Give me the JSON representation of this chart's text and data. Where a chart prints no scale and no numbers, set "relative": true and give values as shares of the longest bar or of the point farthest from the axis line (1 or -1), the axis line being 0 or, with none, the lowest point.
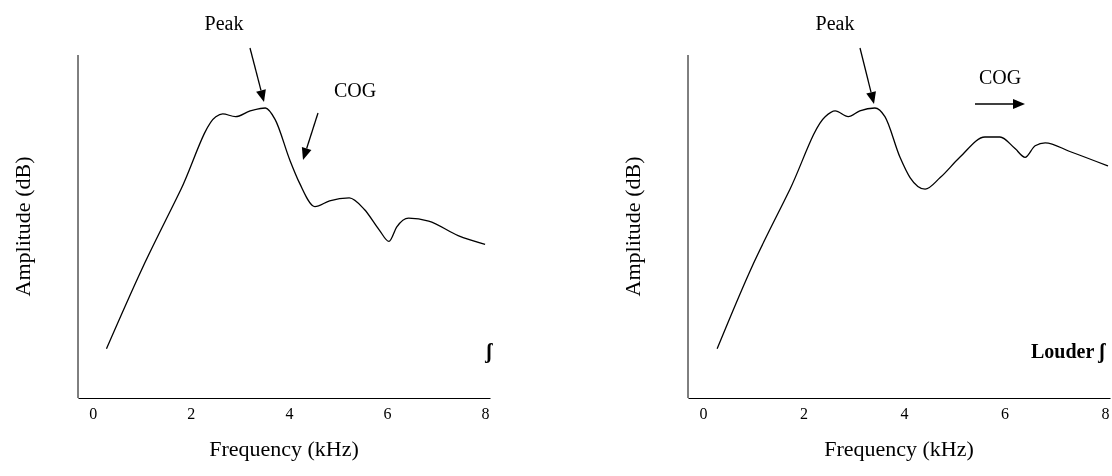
{
  "chart_data": [
    {
      "type": "line",
      "relative": true,
      "xlabel": "Frequency (kHz)",
      "ylabel": "Amplitude (dB)",
      "xlim": [
        -0.3,
        8.1
      ],
      "xticks": [
        0,
        2,
        4,
        6,
        8
      ],
      "tick_labels": "x",
      "grid": false,
      "marker": "none",
      "line_style": "solid",
      "series": [
        {
          "color": "#000000",
          "x": [
            0.28,
            0.99,
            1.8,
            2.51,
            2.65,
            2.91,
            3.21,
            3.52,
            3.72,
            4.02,
            4.22,
            4.53,
            4.83,
            5.23,
            5.54,
            5.84,
            6.04,
            6.2,
            6.44,
            6.85,
            7.45,
            8.0
          ],
          "values": [
            0.17,
            0.44,
            0.72,
            0.97,
            0.98,
            0.97,
            0.99,
            1.0,
            0.96,
            0.82,
            0.74,
            0.66,
            0.68,
            0.69,
            0.65,
            0.58,
            0.54,
            0.59,
            0.62,
            0.61,
            0.56,
            0.53
          ]
        }
      ],
      "annotations": [
        "Peak",
        "COG",
        "ʃ"
      ]
    },
    {
      "type": "line",
      "relative": true,
      "xlabel": "Frequency (kHz)",
      "ylabel": "Amplitude (dB)",
      "xlim": [
        -0.3,
        8.1
      ],
      "xticks": [
        0,
        2,
        4,
        6,
        8
      ],
      "tick_labels": "x",
      "grid": false,
      "marker": "none",
      "line_style": "solid",
      "series": [
        {
          "color": "#000000",
          "x": [
            0.28,
            0.94,
            1.73,
            2.43,
            2.63,
            2.89,
            3.12,
            3.42,
            3.62,
            3.92,
            4.12,
            4.42,
            4.72,
            5.11,
            5.61,
            5.91,
            6.21,
            6.41,
            6.61,
            6.81,
            7.3,
            8.06
          ],
          "values": [
            0.17,
            0.44,
            0.72,
            0.97,
            0.99,
            0.97,
            0.99,
            1.0,
            0.97,
            0.83,
            0.76,
            0.72,
            0.76,
            0.83,
            0.9,
            0.9,
            0.86,
            0.83,
            0.87,
            0.88,
            0.85,
            0.8
          ]
        }
      ],
      "annotations": [
        "Peak",
        "COG",
        "Louder ʃ"
      ]
    }
  ]
}
